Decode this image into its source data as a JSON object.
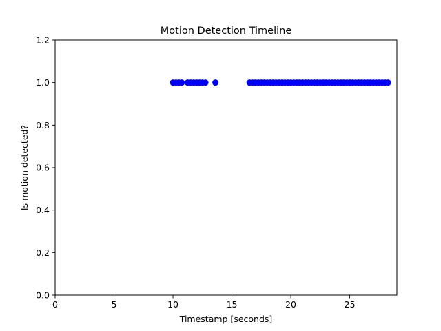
{
  "chart_data": {
    "type": "scatter",
    "title": "Motion Detection Timeline",
    "xlabel": "Timestamp [seconds]",
    "ylabel": "Is motion detected?",
    "xlim": [
      0,
      29
    ],
    "ylim": [
      0,
      1.2
    ],
    "xticks": [
      0,
      5,
      10,
      15,
      20,
      25
    ],
    "yticks": [
      0.0,
      0.2,
      0.4,
      0.6,
      0.8,
      1.0,
      1.2
    ],
    "xtick_labels": [
      "0",
      "5",
      "10",
      "15",
      "20",
      "25"
    ],
    "ytick_labels": [
      "0.0",
      "0.2",
      "0.4",
      "0.6",
      "0.8",
      "1.0",
      "1.2"
    ],
    "grid": false,
    "marker_color": "#0000ff",
    "series": [
      {
        "x": [
          10.0,
          10.25,
          10.5,
          10.75,
          11.25,
          11.5,
          11.75,
          12.0,
          12.25,
          12.5,
          12.75,
          13.6,
          16.5,
          16.75,
          17.0,
          17.25,
          17.5,
          17.75,
          18.0,
          18.25,
          18.5,
          18.75,
          19.0,
          19.25,
          19.5,
          19.75,
          20.0,
          20.25,
          20.5,
          20.75,
          21.0,
          21.25,
          21.5,
          21.75,
          22.0,
          22.25,
          22.5,
          22.75,
          23.0,
          23.25,
          23.5,
          23.75,
          24.0,
          24.25,
          24.5,
          24.75,
          25.0,
          25.25,
          25.5,
          25.75,
          26.0,
          26.25,
          26.5,
          26.75,
          27.0,
          27.25,
          27.5,
          27.75,
          28.0,
          28.25
        ],
        "y": [
          1,
          1,
          1,
          1,
          1,
          1,
          1,
          1,
          1,
          1,
          1,
          1,
          1,
          1,
          1,
          1,
          1,
          1,
          1,
          1,
          1,
          1,
          1,
          1,
          1,
          1,
          1,
          1,
          1,
          1,
          1,
          1,
          1,
          1,
          1,
          1,
          1,
          1,
          1,
          1,
          1,
          1,
          1,
          1,
          1,
          1,
          1,
          1,
          1,
          1,
          1,
          1,
          1,
          1,
          1,
          1,
          1,
          1,
          1,
          1
        ]
      }
    ]
  }
}
